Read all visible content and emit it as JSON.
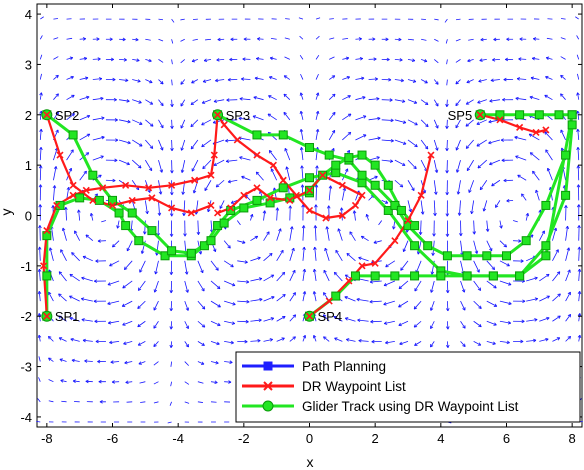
{
  "chart_data": {
    "type": "line",
    "title": "",
    "xlabel": "x",
    "ylabel": "y",
    "xlim": [
      -8.3,
      8.3
    ],
    "ylim": [
      -4.2,
      4.2
    ],
    "xticks": [
      -8,
      -6,
      -4,
      -2,
      0,
      2,
      4,
      6,
      8
    ],
    "yticks": [
      -4,
      -3,
      -2,
      -1,
      0,
      1,
      2,
      3,
      4
    ],
    "grid": false,
    "legend_position": "bottom-right",
    "colors": {
      "path_planning": "#1f1fff",
      "dr_waypoints": "#ff1a1a",
      "glider_track": "#22e622",
      "glider_track_edge": "#0a9a0a",
      "flow_field": "#1515ff"
    },
    "legend": [
      {
        "label": "Path Planning",
        "marker": "square",
        "color": "#1f1fff"
      },
      {
        "label": "DR Waypoint List",
        "marker": "x",
        "color": "#ff1a1a"
      },
      {
        "label": "Glider Track using DR Waypoint List",
        "marker": "circle",
        "color": "#22e622"
      }
    ],
    "start_points": [
      {
        "label": "SP1",
        "x": -8.0,
        "y": -2.0
      },
      {
        "label": "SP2",
        "x": -8.0,
        "y": 2.0
      },
      {
        "label": "SP3",
        "x": -2.8,
        "y": 2.0
      },
      {
        "label": "SP4",
        "x": 0.0,
        "y": -2.0
      },
      {
        "label": "SP5",
        "x": 5.2,
        "y": 2.0
      }
    ],
    "series": [
      {
        "role": "path_planning",
        "x": [
          -8.0,
          -8.0,
          -8.0,
          -7.6,
          -7.0,
          -6.4,
          -5.8,
          -5.6,
          -5.2,
          -4.4,
          -3.6,
          -3.2,
          -2.8,
          -2.4,
          -1.6,
          -0.8,
          0.0,
          0.8,
          1.6,
          2.4,
          3.2,
          4.0,
          4.8,
          5.6,
          6.4,
          7.2,
          8.0
        ],
        "y": [
          -2.0,
          -1.2,
          -0.4,
          0.2,
          0.35,
          0.3,
          0.05,
          -0.2,
          -0.5,
          -0.8,
          -0.8,
          -0.6,
          -0.2,
          0.1,
          0.3,
          0.55,
          0.75,
          0.85,
          0.65,
          0.1,
          -0.6,
          -1.1,
          -1.2,
          -1.2,
          -1.2,
          -0.8,
          2.0
        ]
      },
      {
        "role": "dr_waypoints",
        "x": [
          -8.0,
          -8.1,
          -8.0,
          -7.7,
          -7.2,
          -6.8,
          -6.3,
          -5.6,
          -4.9,
          -4.2,
          -3.5,
          -3.0,
          -2.9,
          -2.8,
          -2.6,
          -2.2,
          -1.6,
          -1.1,
          -0.8,
          -0.4,
          0.0,
          0.5,
          1.0,
          1.4,
          1.6,
          1.0,
          0.4,
          0.0,
          -0.6,
          -1.2,
          -1.6,
          -2.0,
          -2.4,
          -2.8
        ],
        "y": [
          -2.0,
          -1.0,
          -0.3,
          0.2,
          0.4,
          0.5,
          0.55,
          0.6,
          0.55,
          0.6,
          0.7,
          0.8,
          1.2,
          2.0,
          1.8,
          1.5,
          1.2,
          1.0,
          0.7,
          0.4,
          0.1,
          -0.05,
          0.0,
          0.2,
          0.4,
          0.6,
          0.8,
          0.5,
          0.3,
          0.35,
          0.55,
          0.4,
          0.15,
          0.05
        ]
      },
      {
        "role": "dr_waypoints",
        "x": [
          -8.0,
          -7.6,
          -7.2,
          -6.6,
          -6.0,
          -5.4,
          -4.8,
          -4.2,
          -3.6,
          -3.0
        ],
        "y": [
          2.0,
          1.2,
          0.6,
          0.3,
          0.2,
          0.3,
          0.35,
          0.15,
          0.05,
          0.2
        ]
      },
      {
        "role": "dr_waypoints",
        "x": [
          0.0,
          0.6,
          1.2,
          1.6,
          2.0,
          2.6,
          3.0,
          3.4,
          3.7
        ],
        "y": [
          -2.0,
          -1.7,
          -1.3,
          -1.0,
          -0.95,
          -0.5,
          -0.1,
          0.4,
          1.2
        ]
      },
      {
        "role": "dr_waypoints",
        "x": [
          5.2,
          5.8,
          6.4,
          6.9,
          7.2
        ],
        "y": [
          2.0,
          1.9,
          1.75,
          1.65,
          1.7
        ]
      },
      {
        "role": "glider_track",
        "x": [
          -8.0,
          -8.0,
          -8.0,
          -7.6,
          -7.0,
          -6.4,
          -5.8,
          -5.6,
          -5.2,
          -4.4,
          -3.6,
          -3.2,
          -2.8,
          -2.4,
          -1.6,
          -0.8,
          0.0,
          0.8,
          1.6,
          2.4,
          3.2,
          4.0,
          4.8,
          5.6,
          6.4,
          7.2,
          8.0
        ],
        "y": [
          -2.0,
          -1.2,
          -0.4,
          0.2,
          0.35,
          0.3,
          0.05,
          -0.2,
          -0.5,
          -0.8,
          -0.8,
          -0.6,
          -0.2,
          0.1,
          0.3,
          0.55,
          0.75,
          0.85,
          0.65,
          0.1,
          -0.6,
          -1.1,
          -1.2,
          -1.2,
          -1.2,
          -0.8,
          2.0
        ]
      },
      {
        "role": "glider_track",
        "x": [
          -8.0,
          -7.2,
          -6.6,
          -6.0,
          -5.4,
          -4.8,
          -4.2,
          -3.6,
          -3.0,
          -2.6,
          -2.0,
          -1.2,
          -0.6,
          0.0
        ],
        "y": [
          2.0,
          1.6,
          0.8,
          0.3,
          0.05,
          -0.3,
          -0.7,
          -0.75,
          -0.5,
          -0.15,
          0.15,
          0.25,
          0.35,
          0.45
        ]
      },
      {
        "role": "glider_track",
        "x": [
          -2.8,
          -1.6,
          -0.8,
          0.0,
          0.6,
          1.2,
          1.6,
          2.0,
          2.6,
          3.0,
          3.6,
          4.2,
          4.8,
          5.4,
          6.0,
          6.6,
          7.2,
          7.8
        ],
        "y": [
          2.0,
          1.6,
          1.6,
          1.35,
          1.2,
          1.1,
          0.8,
          0.6,
          0.2,
          -0.2,
          -0.6,
          -0.8,
          -0.8,
          -0.8,
          -0.8,
          -0.5,
          0.2,
          1.2
        ]
      },
      {
        "role": "glider_track",
        "x": [
          0.0,
          0.4,
          0.8,
          1.2,
          1.6,
          2.0,
          2.4,
          2.8,
          3.2
        ],
        "y": [
          0.5,
          0.8,
          1.0,
          1.15,
          1.2,
          1.0,
          0.6,
          0.1,
          -0.2
        ]
      },
      {
        "role": "glider_track",
        "x": [
          0.0,
          0.8,
          1.4,
          2.0,
          2.6,
          3.2,
          4.0,
          4.8,
          5.6,
          6.4,
          7.2,
          7.8,
          8.0
        ],
        "y": [
          -2.0,
          -1.6,
          -1.2,
          -1.2,
          -1.2,
          -1.2,
          -1.2,
          -1.2,
          -1.2,
          -1.2,
          -0.6,
          0.4,
          1.8
        ]
      },
      {
        "role": "glider_track",
        "x": [
          5.2,
          5.8,
          6.4,
          7.0,
          7.6,
          8.0
        ],
        "y": [
          2.0,
          2.0,
          2.0,
          2.0,
          2.0,
          2.0
        ]
      }
    ]
  }
}
